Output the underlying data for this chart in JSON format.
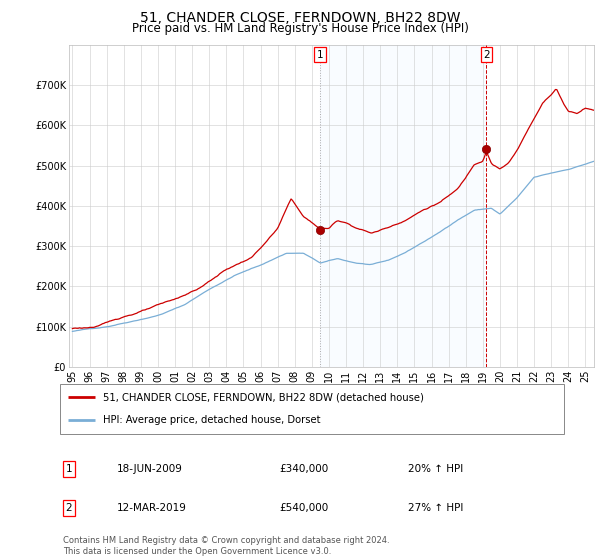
{
  "title": "51, CHANDER CLOSE, FERNDOWN, BH22 8DW",
  "subtitle": "Price paid vs. HM Land Registry's House Price Index (HPI)",
  "legend_line1": "51, CHANDER CLOSE, FERNDOWN, BH22 8DW (detached house)",
  "legend_line2": "HPI: Average price, detached house, Dorset",
  "annotation1_label": "1",
  "annotation1_date": "18-JUN-2009",
  "annotation1_price": "£340,000",
  "annotation1_hpi": "20% ↑ HPI",
  "annotation2_label": "2",
  "annotation2_date": "12-MAR-2019",
  "annotation2_price": "£540,000",
  "annotation2_hpi": "27% ↑ HPI",
  "footer": "Contains HM Land Registry data © Crown copyright and database right 2024.\nThis data is licensed under the Open Government Licence v3.0.",
  "price_color": "#cc0000",
  "hpi_color": "#7aaed6",
  "vline1_color": "#aaaaaa",
  "vline2_color": "#cc0000",
  "shade_color": "#ddeeff",
  "dot_color": "#aa0000",
  "background_color": "#ffffff",
  "ylim": [
    0,
    800000
  ],
  "yticks": [
    0,
    100000,
    200000,
    300000,
    400000,
    500000,
    600000,
    700000
  ],
  "ytick_labels": [
    "£0",
    "£100K",
    "£200K",
    "£300K",
    "£400K",
    "£500K",
    "£600K",
    "£700K"
  ],
  "ann1_x": 2009.46,
  "ann1_y": 340000,
  "ann2_x": 2019.21,
  "ann2_y": 540000,
  "xlim_left": 1994.8,
  "xlim_right": 2025.5,
  "title_fontsize": 10,
  "subtitle_fontsize": 8.5,
  "tick_fontsize": 7
}
